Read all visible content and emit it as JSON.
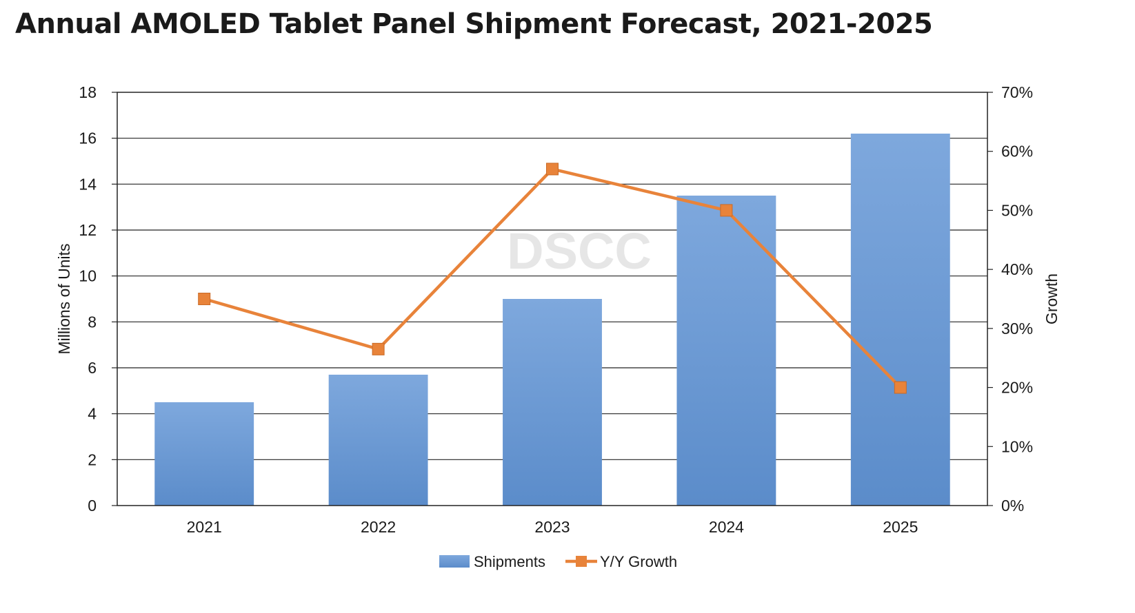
{
  "title": "Annual AMOLED Tablet Panel Shipment Forecast, 2021-2025",
  "watermark": "DSCC",
  "chart_data": {
    "type": "bar",
    "categories": [
      "2021",
      "2022",
      "2023",
      "2024",
      "2025"
    ],
    "series": [
      {
        "name": "Shipments",
        "type": "bar",
        "axis": "left",
        "values": [
          4.5,
          5.7,
          9.0,
          13.5,
          16.2
        ],
        "color": "#6b9bd6"
      },
      {
        "name": "Y/Y Growth",
        "type": "line",
        "axis": "right",
        "values": [
          0.35,
          0.265,
          0.57,
          0.5,
          0.2
        ],
        "color": "#e8833a"
      }
    ],
    "ylabel": "Millions of Units",
    "y2label": "Growth",
    "ylim": [
      0,
      18
    ],
    "y2lim": [
      0,
      0.7
    ],
    "yticks": [
      "0",
      "2",
      "4",
      "6",
      "8",
      "10",
      "12",
      "14",
      "16",
      "18"
    ],
    "y2ticks": [
      "0%",
      "10%",
      "20%",
      "30%",
      "40%",
      "50%",
      "60%",
      "70%"
    ],
    "grid": true,
    "legend_position": "bottom"
  }
}
